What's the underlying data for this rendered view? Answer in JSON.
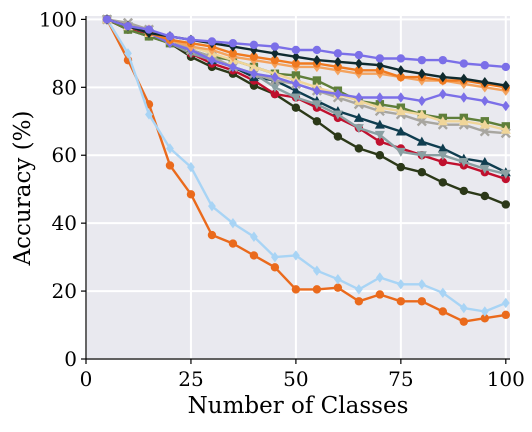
{
  "chart_data": {
    "type": "line",
    "xlabel": "Number of Classes",
    "ylabel": "Accuracy (%)",
    "xlim": [
      0,
      101
    ],
    "ylim": [
      0,
      101
    ],
    "xticks": [
      0,
      25,
      50,
      75,
      100
    ],
    "yticks": [
      0,
      20,
      40,
      60,
      80,
      100
    ],
    "grid": true,
    "background": "#e9e9ef",
    "x": [
      5,
      10,
      15,
      20,
      25,
      30,
      35,
      40,
      45,
      50,
      55,
      60,
      65,
      70,
      75,
      80,
      85,
      90,
      95,
      100
    ],
    "series": [
      {
        "color": "#ea6a1c",
        "marker": "circle",
        "values": [
          100,
          88,
          75,
          57,
          48.5,
          36.5,
          34,
          30.5,
          27,
          20.5,
          20.5,
          21,
          17,
          19,
          17,
          17,
          14,
          11,
          12,
          13
        ]
      },
      {
        "color": "#a8d4f5",
        "marker": "diamond",
        "values": [
          100,
          90,
          72,
          62,
          56.5,
          45,
          40,
          36,
          30,
          30.5,
          26,
          23.5,
          20.5,
          24,
          22,
          22,
          19.5,
          15,
          14,
          16.5
        ]
      },
      {
        "color": "#2b3818",
        "marker": "circle",
        "values": [
          100,
          97,
          95,
          93,
          89,
          86,
          84,
          80.5,
          78,
          74,
          70,
          65.5,
          62,
          60,
          56.5,
          55,
          52,
          49.5,
          48,
          45.5
        ]
      },
      {
        "color": "#c0102e",
        "marker": "circle",
        "values": [
          100,
          97,
          96,
          93,
          90,
          87,
          85,
          82,
          78,
          77,
          74,
          71,
          68,
          64,
          62,
          60,
          58,
          57,
          55,
          53
        ]
      },
      {
        "color": "#0f3d4f",
        "marker": "triangle",
        "values": [
          100,
          98,
          96,
          94,
          91,
          88,
          86,
          83,
          82,
          79,
          76,
          73,
          71,
          69,
          67,
          64,
          62,
          59,
          58,
          55
        ]
      },
      {
        "color": "#8aa0a3",
        "marker": "triangle-down",
        "values": [
          100,
          98,
          96,
          93,
          90,
          88,
          86,
          84,
          80,
          77,
          75,
          72,
          68,
          66,
          61,
          60,
          60,
          58,
          56,
          54.5
        ]
      },
      {
        "color": "#5f7f3a",
        "marker": "square",
        "values": [
          100,
          97,
          95,
          93,
          91,
          89,
          88,
          86,
          84,
          83.5,
          82,
          79,
          76,
          75,
          74,
          72,
          71,
          71,
          70,
          68.5
        ]
      },
      {
        "color": "#a8a6a0",
        "marker": "x",
        "values": [
          100,
          99,
          97,
          94,
          91,
          89,
          86,
          84,
          82,
          81,
          79,
          77,
          75,
          73,
          72,
          70,
          69,
          69,
          67,
          66.5
        ]
      },
      {
        "color": "#f0d69a",
        "marker": "triangle",
        "values": [
          100,
          98,
          96,
          94,
          92,
          90,
          88,
          86,
          84,
          82,
          80,
          78,
          76,
          74,
          73,
          72,
          70,
          70,
          69,
          67.5
        ]
      },
      {
        "color": "#7b6fe8",
        "marker": "diamond",
        "values": [
          100,
          98,
          96,
          93,
          91,
          88,
          86,
          84,
          83,
          81,
          79,
          78,
          77,
          77,
          77,
          76,
          78,
          77,
          76,
          74.5
        ]
      },
      {
        "color": "#f4a35e",
        "marker": "diamond",
        "values": [
          100,
          98,
          97,
          94,
          92,
          91,
          89,
          88,
          87,
          86,
          86,
          85,
          84,
          84,
          83,
          82,
          82,
          81,
          80,
          79
        ]
      },
      {
        "color": "#f07a20",
        "marker": "circle",
        "values": [
          100,
          98,
          96,
          94,
          93,
          92,
          90,
          89,
          88,
          87,
          87,
          86,
          85,
          85,
          83,
          83,
          82,
          82,
          81,
          80
        ]
      },
      {
        "color": "#0f2a2e",
        "marker": "diamond",
        "values": [
          100,
          98,
          96,
          95,
          94,
          93,
          92,
          91,
          90,
          89,
          88,
          87.5,
          87,
          86.5,
          85,
          84,
          83,
          82.5,
          81.5,
          80.5
        ]
      },
      {
        "color": "#7b6fe8",
        "marker": "circle",
        "values": [
          100,
          98,
          97,
          95,
          94,
          93.5,
          93,
          92.5,
          92,
          91,
          91,
          90,
          89.5,
          88.5,
          88.5,
          88,
          88,
          87,
          86.5,
          86
        ]
      }
    ]
  }
}
